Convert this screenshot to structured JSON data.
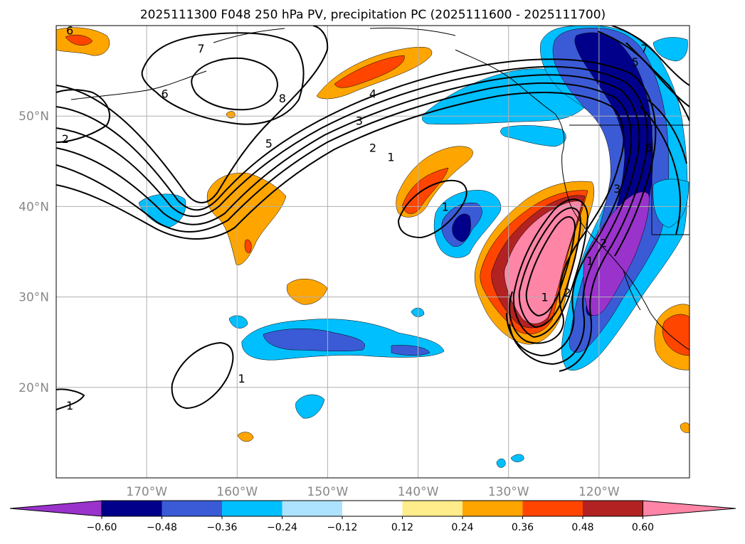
{
  "chart_data": {
    "type": "contour-map",
    "title": "2025111300 F048 250 hPa PV, precipitation PC (2025111600 - 2025111700)",
    "lon_range": [
      -180,
      -110
    ],
    "lat_range": [
      10,
      60
    ],
    "lat_ticks": [
      {
        "value": 20,
        "label": "20°N"
      },
      {
        "value": 30,
        "label": "30°N"
      },
      {
        "value": 40,
        "label": "40°N"
      },
      {
        "value": 50,
        "label": "50°N"
      }
    ],
    "lon_ticks": [
      {
        "value": -170,
        "label": "170°W"
      },
      {
        "value": -160,
        "label": "160°W"
      },
      {
        "value": -150,
        "label": "150°W"
      },
      {
        "value": -140,
        "label": "140°W"
      },
      {
        "value": -130,
        "label": "130°W"
      },
      {
        "value": -120,
        "label": "120°W"
      }
    ],
    "grid": true,
    "colorbar": {
      "levels": [
        -0.6,
        -0.48,
        -0.36,
        -0.24,
        -0.12,
        0.12,
        0.24,
        0.36,
        0.48,
        0.6
      ],
      "labels": [
        "−0.60",
        "−0.48",
        "−0.36",
        "−0.24",
        "−0.12",
        "0.12",
        "0.24",
        "0.36",
        "0.48",
        "0.60"
      ],
      "colors": [
        "#9933cc",
        "#00008b",
        "#3b5bd6",
        "#00bfff",
        "#aee3ff",
        "#ffffff",
        "#ffec8b",
        "#ffa500",
        "#ff4500",
        "#b22222",
        "#ff85a7"
      ],
      "extend": "both"
    },
    "contour_labels": [
      {
        "text": "1",
        "lon": -143,
        "lat": 45.5
      },
      {
        "text": "2",
        "lon": -145,
        "lat": 46.5
      },
      {
        "text": "3",
        "lon": -146.5,
        "lat": 49.5
      },
      {
        "text": "4",
        "lon": -145,
        "lat": 52.5
      },
      {
        "text": "5",
        "lon": -156.5,
        "lat": 47
      },
      {
        "text": "6",
        "lon": -168,
        "lat": 52.5
      },
      {
        "text": "7",
        "lon": -164,
        "lat": 57.5
      },
      {
        "text": "8",
        "lon": -155,
        "lat": 52
      },
      {
        "text": "2",
        "lon": -179,
        "lat": 47.5
      },
      {
        "text": "6",
        "lon": -178.5,
        "lat": 59.5
      },
      {
        "text": "1",
        "lon": -137,
        "lat": 40
      },
      {
        "text": "1",
        "lon": -159.5,
        "lat": 21
      },
      {
        "text": "1",
        "lon": -178.5,
        "lat": 18
      },
      {
        "text": "1",
        "lon": -126,
        "lat": 30
      },
      {
        "text": "2",
        "lon": -123.5,
        "lat": 30.5
      },
      {
        "text": "1",
        "lon": -121,
        "lat": 34
      },
      {
        "text": "2",
        "lon": -119.5,
        "lat": 36
      },
      {
        "text": "3",
        "lon": -118,
        "lat": 42
      },
      {
        "text": "5",
        "lon": -116,
        "lat": 56
      },
      {
        "text": "6",
        "lon": -114.5,
        "lat": 46.5
      },
      {
        "text": "7",
        "lon": -115,
        "lat": 57.5
      }
    ]
  }
}
